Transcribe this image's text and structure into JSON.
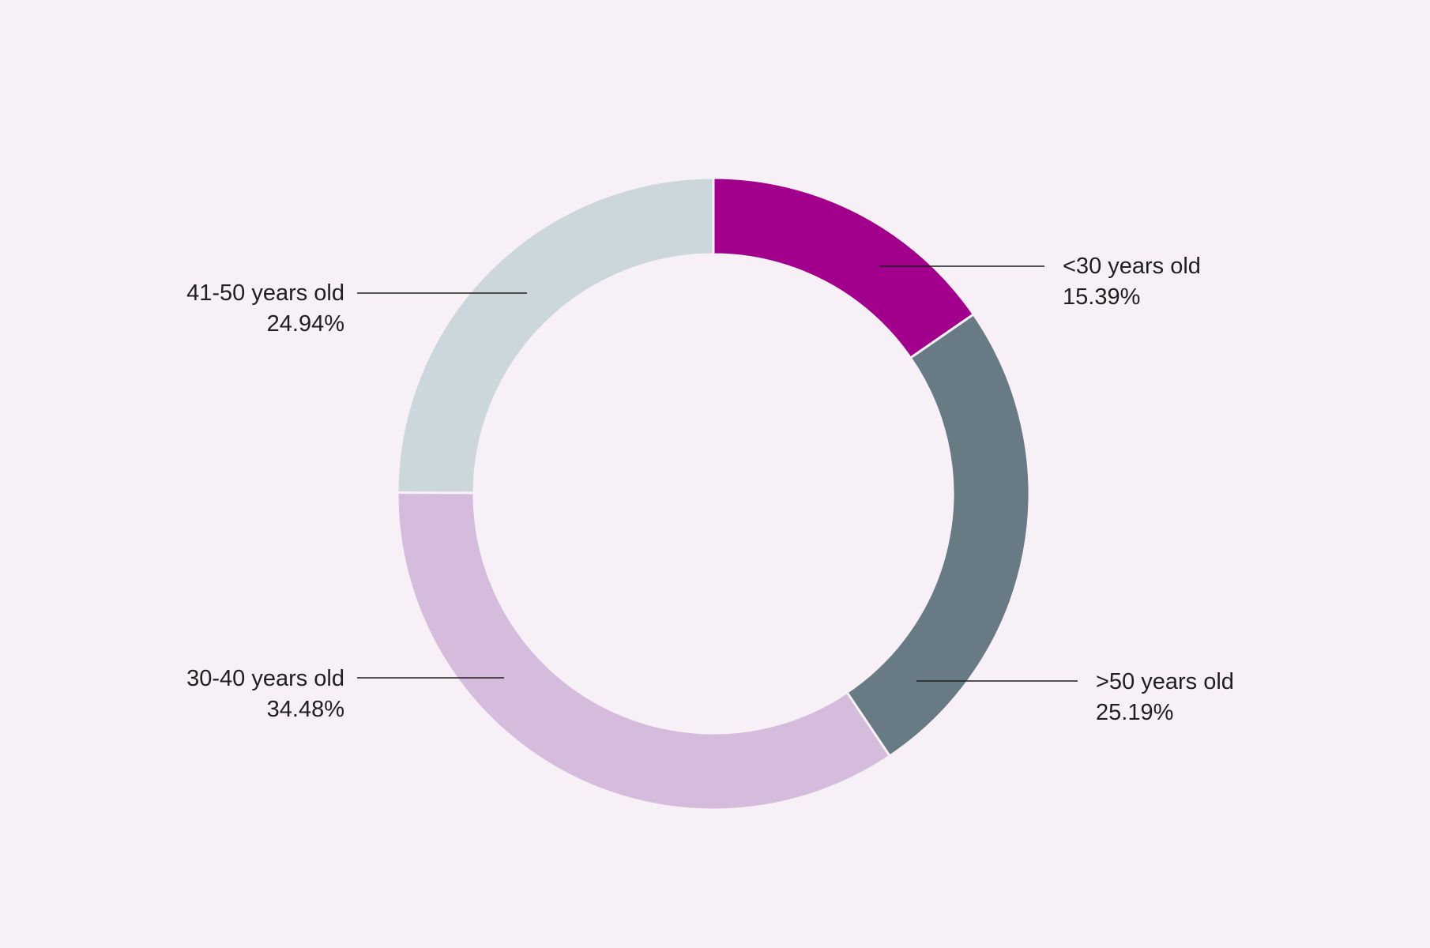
{
  "chart_data": {
    "type": "pie",
    "style": "donut",
    "start": "12 o'clock",
    "direction": "clockwise",
    "slices": [
      {
        "label": "<30 years old",
        "value": 15.39,
        "value_label": "15.39%",
        "color": "#a2008c"
      },
      {
        "label": ">50 years old",
        "value": 25.19,
        "value_label": "25.19%",
        "color": "#687a84"
      },
      {
        "label": "30-40 years old",
        "value": 34.48,
        "value_label": "34.48%",
        "color": "#d5bcdc"
      },
      {
        "label": "41-50 years old",
        "value": 24.94,
        "value_label": "24.94%",
        "color": "#ccd7dc"
      }
    ],
    "legend": "none",
    "labels": "outside with leader lines"
  },
  "background_color": "#f7f0f7"
}
